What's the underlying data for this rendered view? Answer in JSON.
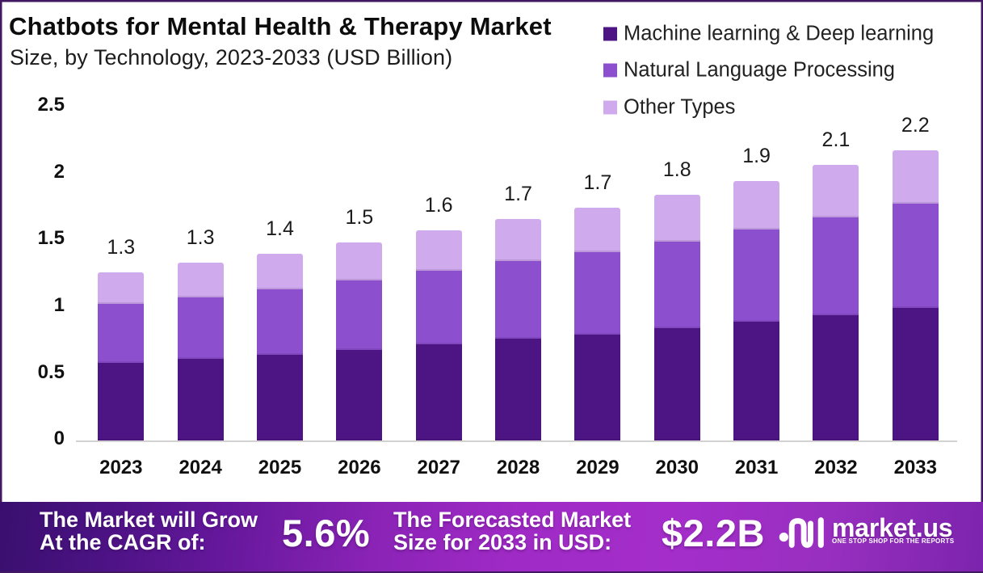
{
  "title": "Chatbots for Mental Health & Therapy Market",
  "subtitle": "Size, by Technology, 2023-2033 (USD Billion)",
  "chart_data": {
    "type": "bar",
    "stacked": true,
    "title": "Chatbots for Mental Health & Therapy Market Size, by Technology, 2023-2033 (USD Billion)",
    "unit": "USD Billion",
    "categories": [
      "2023",
      "2024",
      "2025",
      "2026",
      "2027",
      "2028",
      "2029",
      "2030",
      "2031",
      "2032",
      "2033"
    ],
    "series": [
      {
        "name": "Machine learning & Deep learning",
        "color": "#4d1583",
        "values": [
          0.58,
          0.61,
          0.64,
          0.68,
          0.72,
          0.76,
          0.79,
          0.84,
          0.89,
          0.94,
          0.99
        ]
      },
      {
        "name": "Natural Language Processing",
        "color": "#8c50ce",
        "values": [
          0.44,
          0.46,
          0.49,
          0.52,
          0.55,
          0.58,
          0.62,
          0.65,
          0.69,
          0.73,
          0.78
        ]
      },
      {
        "name": "Other Types",
        "color": "#cfaaec",
        "values": [
          0.24,
          0.26,
          0.27,
          0.28,
          0.3,
          0.32,
          0.33,
          0.35,
          0.36,
          0.39,
          0.4
        ]
      }
    ],
    "total_labels": [
      "1.3",
      "1.3",
      "1.4",
      "1.5",
      "1.6",
      "1.7",
      "1.7",
      "1.8",
      "1.9",
      "2.1",
      "2.2"
    ],
    "y_ticks": [
      "0",
      "0.5",
      "1",
      "1.5",
      "2",
      "2.5"
    ],
    "ylim": [
      0,
      2.5
    ],
    "grid": false,
    "legend_position": "top-right"
  },
  "footer": {
    "cagr_label_line1": "The Market will Grow",
    "cagr_label_line2": "At the CAGR of:",
    "cagr_value": "5.6%",
    "forecast_label_line1": "The Forecasted Market",
    "forecast_label_line2": "Size for 2033 in USD:",
    "forecast_value": "$2.2B",
    "brand_name": "market.us",
    "brand_tagline": "ONE STOP SHOP FOR THE REPORTS"
  }
}
